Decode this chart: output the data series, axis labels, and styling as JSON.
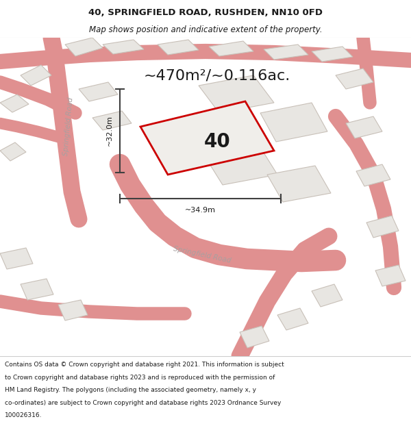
{
  "title_line1": "40, SPRINGFIELD ROAD, RUSHDEN, NN10 0FD",
  "title_line2": "Map shows position and indicative extent of the property.",
  "area_label": "~470m²/~0.116ac.",
  "plot_number": "40",
  "dim_width": "~34.9m",
  "dim_height": "~32.0m",
  "footer_lines": [
    "Contains OS data © Crown copyright and database right 2021. This information is subject",
    "to Crown copyright and database rights 2023 and is reproduced with the permission of",
    "HM Land Registry. The polygons (including the associated geometry, namely x, y",
    "co-ordinates) are subject to Crown copyright and database rights 2023 Ordnance Survey",
    "100026316."
  ],
  "bg_color": "#f5f3f0",
  "map_bg": "#f5f3f0",
  "road_fill": "#e8e4e0",
  "road_edge": "#e09090",
  "plot_fill": "#e8e6e2",
  "plot_edge": "#c8c0b8",
  "highlight_fill": "#f0eeea",
  "highlight_edge": "#cc0000",
  "dim_arrow_color": "#404040",
  "label_color": "#b8b0a8",
  "footer_bg": "#ffffff",
  "title_bg": "#ffffff",
  "text_color": "#1a1a1a",
  "road_label_color": "#a8a0a0",
  "title_fontsize": 9.5,
  "subtitle_fontsize": 8.5,
  "area_fontsize": 16,
  "plot_num_fontsize": 20,
  "dim_fontsize": 8,
  "road_label_fontsize": 7.5,
  "footer_fontsize": 6.5
}
